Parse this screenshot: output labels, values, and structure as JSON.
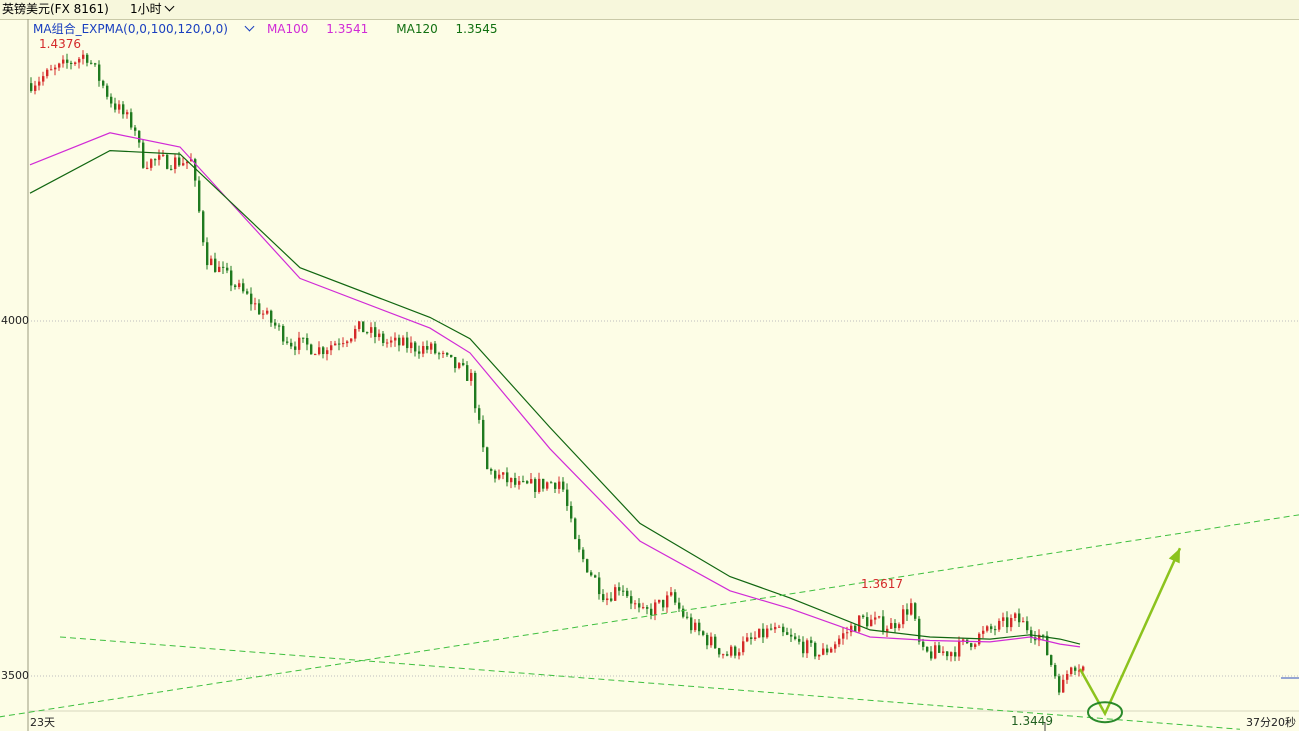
{
  "header": {
    "symbol": "英镑美元(FX 8161)",
    "period": "1小时"
  },
  "legend": {
    "indicator": "MA组合_EXPMA(0,0,100,120,0,0)",
    "ma100_label": "MA100",
    "ma100_value": "1.3541",
    "ma120_label": "MA120",
    "ma120_value": "1.3545"
  },
  "colors": {
    "background": "#fdfde6",
    "up_candle": "#d42a2a",
    "down_candle": "#1f7a1f",
    "ma100": "#d12bd6",
    "ma120": "#116611",
    "trendline": "#3fbf3f",
    "arrow": "#8cc31e",
    "highlight_circle": "#2a8a2a"
  },
  "annotations": {
    "high_label": "1.4376",
    "mid_high_label": "1.3617",
    "low_label": "1.3449"
  },
  "axis": {
    "y_tick_upper": "4000",
    "y_tick_lower": "3500",
    "x_left_label": "23天",
    "x_right_label": "37分20秒"
  },
  "chart_data": {
    "type": "candlestick",
    "title": "",
    "timeframe": "1小时",
    "y_ticks": [
      1.4,
      1.35
    ],
    "ylim": [
      1.3425,
      1.4455
    ],
    "marked_high": 1.4376,
    "marked_mid_high": 1.3617,
    "marked_low": 1.3449,
    "series": [
      {
        "name": "MA100",
        "points": [
          [
            0,
            1.422
          ],
          [
            80,
            1.4265
          ],
          [
            150,
            1.4245
          ],
          [
            270,
            1.406
          ],
          [
            400,
            1.399
          ],
          [
            440,
            1.3955
          ],
          [
            520,
            1.382
          ],
          [
            610,
            1.369
          ],
          [
            700,
            1.362
          ],
          [
            760,
            1.3595
          ],
          [
            840,
            1.3555
          ],
          [
            900,
            1.355
          ],
          [
            960,
            1.3548
          ],
          [
            1000,
            1.3555
          ],
          [
            1030,
            1.3545
          ],
          [
            1050,
            1.3541
          ]
        ]
      },
      {
        "name": "MA120",
        "points": [
          [
            0,
            1.418
          ],
          [
            80,
            1.424
          ],
          [
            150,
            1.4235
          ],
          [
            270,
            1.4075
          ],
          [
            400,
            1.4005
          ],
          [
            440,
            1.3975
          ],
          [
            520,
            1.385
          ],
          [
            610,
            1.3715
          ],
          [
            700,
            1.364
          ],
          [
            760,
            1.361
          ],
          [
            840,
            1.3565
          ],
          [
            900,
            1.3555
          ],
          [
            960,
            1.3552
          ],
          [
            1000,
            1.3558
          ],
          [
            1030,
            1.3552
          ],
          [
            1050,
            1.3545
          ]
        ]
      }
    ],
    "path_keypoints": [
      [
        0,
        1.4335
      ],
      [
        55,
        1.4376
      ],
      [
        80,
        1.431
      ],
      [
        105,
        1.427
      ],
      [
        110,
        1.4225
      ],
      [
        160,
        1.4225
      ],
      [
        175,
        1.409
      ],
      [
        215,
        1.4035
      ],
      [
        260,
        1.397
      ],
      [
        290,
        1.396
      ],
      [
        330,
        1.399
      ],
      [
        355,
        1.397
      ],
      [
        400,
        1.396
      ],
      [
        440,
        1.392
      ],
      [
        455,
        1.379
      ],
      [
        490,
        1.3765
      ],
      [
        530,
        1.3775
      ],
      [
        545,
        1.368
      ],
      [
        575,
        1.361
      ],
      [
        590,
        1.363
      ],
      [
        610,
        1.3585
      ],
      [
        640,
        1.361
      ],
      [
        660,
        1.357
      ],
      [
        695,
        1.353
      ],
      [
        740,
        1.3565
      ],
      [
        790,
        1.353
      ],
      [
        830,
        1.358
      ],
      [
        860,
        1.357
      ],
      [
        880,
        1.36
      ],
      [
        890,
        1.353
      ],
      [
        920,
        1.3535
      ],
      [
        960,
        1.3565
      ],
      [
        985,
        1.358
      ],
      [
        1010,
        1.3555
      ],
      [
        1030,
        1.348
      ],
      [
        1040,
        1.352
      ],
      [
        1055,
        1.351
      ]
    ],
    "trendlines": [
      {
        "name": "upper_support_channel",
        "from": [
          -110,
          1.3425
        ],
        "to": [
          1299,
          1.3727
        ]
      },
      {
        "name": "lower_descending",
        "from": [
          30,
          1.3555
        ],
        "to": [
          1240,
          1.3425
        ]
      }
    ],
    "projection": {
      "points": [
        [
          1050,
          1.351
        ],
        [
          1075,
          1.3447
        ],
        [
          1150,
          1.368
        ]
      ],
      "highlight": [
        1075,
        1.3449
      ]
    }
  }
}
